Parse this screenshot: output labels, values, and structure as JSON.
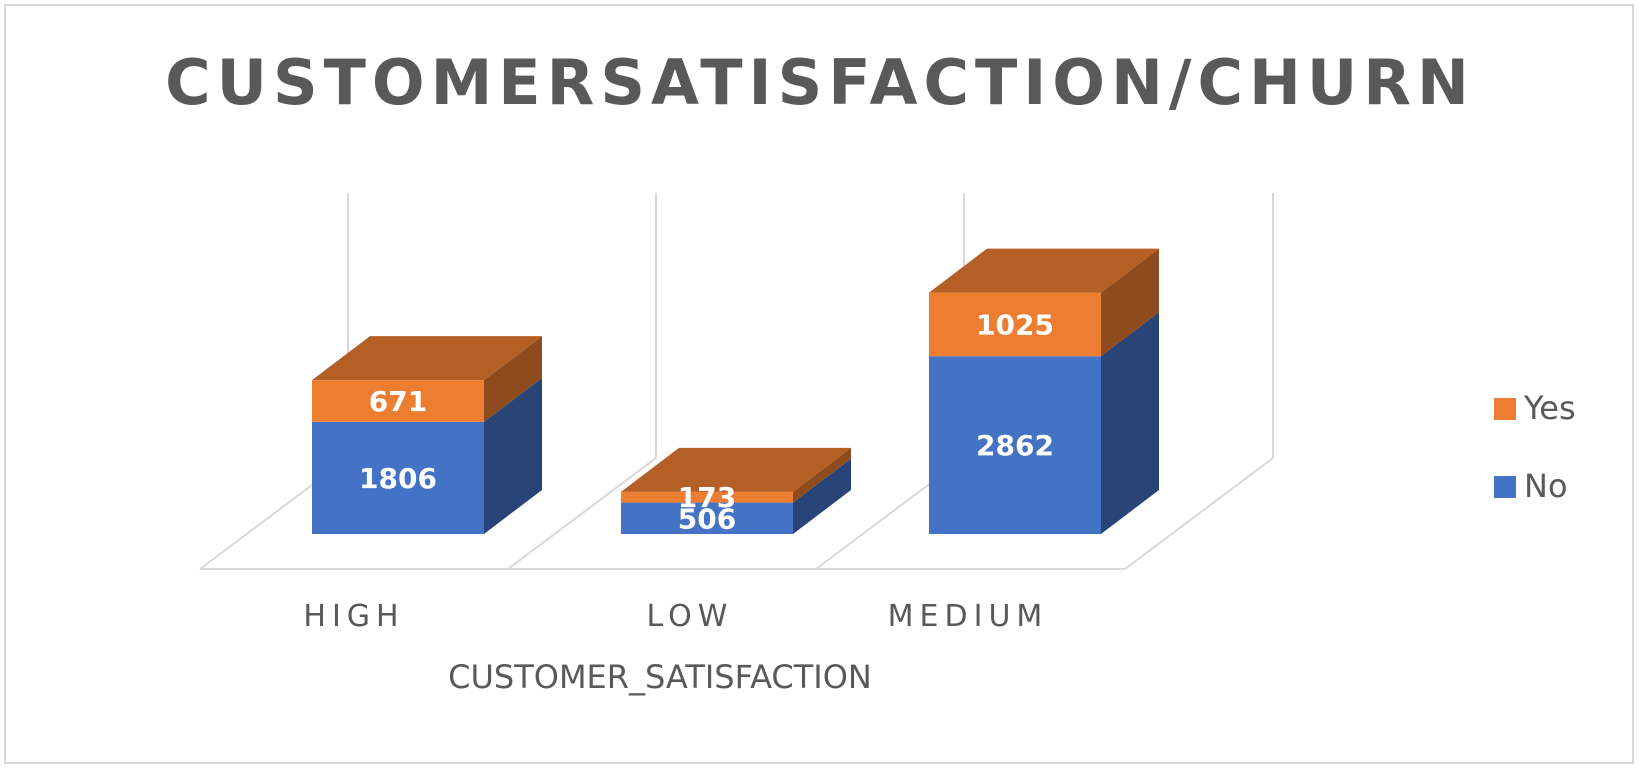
{
  "chart_data": {
    "type": "bar",
    "stacked": true,
    "three_d": true,
    "title": "CUSTOMERSATISFACTION/CHURN",
    "xlabel": "CUSTOMER_SATISFACTION",
    "ylabel": "",
    "categories": [
      "HIGH",
      "LOW",
      "MEDIUM"
    ],
    "series": [
      {
        "name": "No",
        "values": [
          1806,
          506,
          2862
        ],
        "color": "#4472C4"
      },
      {
        "name": "Yes",
        "values": [
          671,
          173,
          1025
        ],
        "color": "#ED7D31"
      }
    ],
    "legend_placement": "right",
    "legend_order": [
      "Yes",
      "No"
    ],
    "grid": true
  }
}
